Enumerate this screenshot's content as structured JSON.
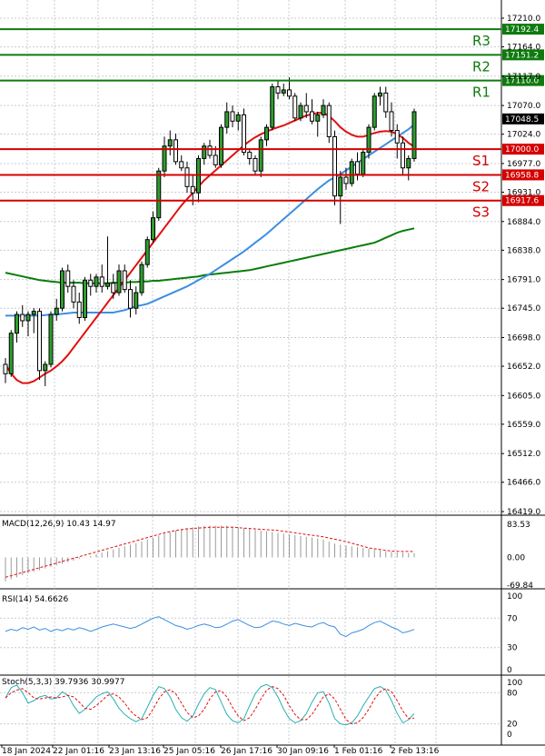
{
  "chart_data": {
    "type": "candlestick",
    "instrument_note": "US index CFD, H4 candles",
    "price_axis": {
      "min": 16419.0,
      "max": 17210.0,
      "ticks": [
        17210.0,
        17164.0,
        17117.0,
        17070.0,
        17024.0,
        16977.0,
        16931.0,
        16884.0,
        16838.0,
        16791.0,
        16745.0,
        16698.0,
        16652.0,
        16605.0,
        16559.0,
        16512.0,
        16466.0,
        16419.0
      ]
    },
    "levels": [
      {
        "name": "R3",
        "value": 17192.4,
        "label": "17192.4",
        "color": "#0f7a0f"
      },
      {
        "name": "R2",
        "value": 17151.2,
        "label": "17151.2",
        "color": "#0f7a0f"
      },
      {
        "name": "R1",
        "value": 17110.0,
        "label": "17110.0",
        "color": "#0f7a0f"
      },
      {
        "name": "S1",
        "value": 17000.0,
        "label": "17000.0",
        "color": "#d40000"
      },
      {
        "name": "S2",
        "value": 16958.8,
        "label": "16958.8",
        "color": "#d40000"
      },
      {
        "name": "S3",
        "value": 16917.6,
        "label": "16917.6",
        "color": "#d40000"
      }
    ],
    "current_price": {
      "value": 17048.5,
      "label": "17048.5"
    },
    "x_labels": [
      "18 Jan 2024",
      "22 Jan 01:16",
      "23 Jan 13:16",
      "25 Jan 05:16",
      "26 Jan 17:16",
      "30 Jan 09:16",
      "1 Feb 01:16",
      "2 Feb 13:16"
    ],
    "candles": [
      [
        16655,
        16665,
        16625,
        16640
      ],
      [
        16640,
        16710,
        16635,
        16705
      ],
      [
        16705,
        16740,
        16690,
        16735
      ],
      [
        16735,
        16750,
        16715,
        16725
      ],
      [
        16725,
        16740,
        16700,
        16735
      ],
      [
        16735,
        16745,
        16705,
        16740
      ],
      [
        16740,
        16745,
        16630,
        16645
      ],
      [
        16645,
        16660,
        16620,
        16655
      ],
      [
        16655,
        16740,
        16650,
        16735
      ],
      [
        16735,
        16760,
        16725,
        16745
      ],
      [
        16745,
        16810,
        16740,
        16805
      ],
      [
        16805,
        16815,
        16770,
        16780
      ],
      [
        16780,
        16790,
        16745,
        16755
      ],
      [
        16755,
        16770,
        16720,
        16730
      ],
      [
        16730,
        16795,
        16725,
        16790
      ],
      [
        16790,
        16800,
        16765,
        16780
      ],
      [
        16780,
        16800,
        16770,
        16795
      ],
      [
        16795,
        16815,
        16770,
        16780
      ],
      [
        16780,
        16860,
        16775,
        16785
      ],
      [
        16785,
        16800,
        16760,
        16770
      ],
      [
        16770,
        16815,
        16765,
        16805
      ],
      [
        16805,
        16815,
        16770,
        16775
      ],
      [
        16775,
        16790,
        16730,
        16745
      ],
      [
        16745,
        16780,
        16735,
        16770
      ],
      [
        16770,
        16820,
        16765,
        16815
      ],
      [
        16815,
        16860,
        16810,
        16855
      ],
      [
        16855,
        16900,
        16850,
        16890
      ],
      [
        16890,
        16970,
        16885,
        16965
      ],
      [
        16965,
        17020,
        16955,
        17005
      ],
      [
        17005,
        17030,
        16990,
        17015
      ],
      [
        17015,
        17025,
        16975,
        16980
      ],
      [
        16980,
        16990,
        16965,
        16970
      ],
      [
        16970,
        16980,
        16930,
        16940
      ],
      [
        16940,
        16960,
        16910,
        16930
      ],
      [
        16930,
        16990,
        16915,
        16985
      ],
      [
        16985,
        17010,
        16975,
        17005
      ],
      [
        17005,
        17015,
        16985,
        16990
      ],
      [
        16990,
        17005,
        16970,
        16975
      ],
      [
        16975,
        17040,
        16970,
        17035
      ],
      [
        17035,
        17075,
        17025,
        17060
      ],
      [
        17060,
        17070,
        17035,
        17045
      ],
      [
        17045,
        17060,
        17030,
        17055
      ],
      [
        17055,
        17065,
        16990,
        16995
      ],
      [
        16995,
        17000,
        16975,
        16985
      ],
      [
        16985,
        16990,
        16960,
        16965
      ],
      [
        16965,
        17020,
        16955,
        17015
      ],
      [
        17015,
        17040,
        17005,
        17035
      ],
      [
        17035,
        17105,
        17030,
        17100
      ],
      [
        17100,
        17110,
        17080,
        17090
      ],
      [
        17090,
        17105,
        17085,
        17095
      ],
      [
        17095,
        17115,
        17080,
        17085
      ],
      [
        17085,
        17090,
        17045,
        17050
      ],
      [
        17050,
        17075,
        17045,
        17070
      ],
      [
        17070,
        17090,
        17050,
        17060
      ],
      [
        17060,
        17080,
        17040,
        17045
      ],
      [
        17045,
        17060,
        17020,
        17055
      ],
      [
        17055,
        17080,
        17050,
        17070
      ],
      [
        17070,
        17075,
        17010,
        17020
      ],
      [
        17020,
        17030,
        16910,
        16925
      ],
      [
        16925,
        16965,
        16880,
        16955
      ],
      [
        16955,
        16970,
        16935,
        16945
      ],
      [
        16945,
        16985,
        16940,
        16980
      ],
      [
        16980,
        16995,
        16950,
        16960
      ],
      [
        16960,
        17000,
        16955,
        16995
      ],
      [
        16995,
        17040,
        16985,
        17035
      ],
      [
        17035,
        17090,
        17030,
        17085
      ],
      [
        17085,
        17100,
        17070,
        17090
      ],
      [
        17090,
        17100,
        17050,
        17060
      ],
      [
        17060,
        17075,
        17020,
        17030
      ],
      [
        17030,
        17040,
        16985,
        17010
      ],
      [
        17010,
        17020,
        16960,
        16970
      ],
      [
        16970,
        16990,
        16950,
        16985
      ],
      [
        16985,
        17065,
        16980,
        17060
      ]
    ],
    "ma_fast": [
      16655,
      16640,
      16630,
      16625,
      16625,
      16628,
      16634,
      16640,
      16645,
      16652,
      16660,
      16670,
      16682,
      16694,
      16706,
      16718,
      16730,
      16742,
      16754,
      16766,
      16778,
      16790,
      16802,
      16814,
      16826,
      16838,
      16850,
      16862,
      16874,
      16886,
      16898,
      16910,
      16920,
      16930,
      16940,
      16950,
      16958,
      16966,
      16974,
      16982,
      16990,
      16998,
      17006,
      17013,
      17019,
      17024,
      17028,
      17032,
      17035,
      17038,
      17042,
      17046,
      17050,
      17054,
      17056,
      17058,
      17058,
      17053,
      17045,
      17035,
      17028,
      17023,
      17020,
      17020,
      17023,
      17026,
      17028,
      17029,
      17028,
      17024,
      17018,
      17010,
      17004
    ],
    "ma_mid": [
      16733,
      16733,
      16733,
      16733,
      16733,
      16733,
      16733,
      16734,
      16735,
      16735,
      16736,
      16737,
      16738,
      16738,
      16738,
      16738,
      16738,
      16738,
      16738,
      16738,
      16740,
      16742,
      16745,
      16748,
      16750,
      16752,
      16756,
      16760,
      16764,
      16768,
      16772,
      16776,
      16780,
      16785,
      16790,
      16795,
      16800,
      16806,
      16812,
      16818,
      16824,
      16830,
      16836,
      16843,
      16850,
      16857,
      16864,
      16872,
      16880,
      16888,
      16896,
      16904,
      16912,
      16920,
      16928,
      16936,
      16943,
      16950,
      16955,
      16960,
      16966,
      16972,
      16978,
      16984,
      16990,
      16996,
      17002,
      17008,
      17014,
      17020,
      17026,
      17032,
      17040
    ],
    "ma_slow": [
      16802,
      16800,
      16798,
      16796,
      16794,
      16792,
      16790,
      16789,
      16788,
      16787,
      16786,
      16786,
      16786,
      16786,
      16785,
      16785,
      16785,
      16785,
      16785,
      16786,
      16786,
      16786,
      16787,
      16787,
      16788,
      16788,
      16789,
      16789,
      16790,
      16791,
      16792,
      16793,
      16794,
      16795,
      16796,
      16798,
      16799,
      16800,
      16801,
      16802,
      16803,
      16804,
      16805,
      16806,
      16808,
      16810,
      16812,
      16814,
      16816,
      16818,
      16820,
      16822,
      16824,
      16826,
      16828,
      16830,
      16832,
      16834,
      16836,
      16838,
      16840,
      16842,
      16844,
      16846,
      16848,
      16850,
      16854,
      16858,
      16862,
      16866,
      16869,
      16871,
      16873
    ],
    "macd": {
      "label": "MACD(12,26,9) 10.43 14.97",
      "axis_ticks": [
        "83.53",
        "0.00",
        "-69.84"
      ],
      "range": [
        -69.84,
        83.53
      ],
      "histogram": [
        -60,
        -55,
        -50,
        -45,
        -40,
        -36,
        -32,
        -28,
        -24,
        -20,
        -16,
        -12,
        -8,
        -4,
        0,
        4,
        8,
        12,
        16,
        20,
        24,
        28,
        32,
        36,
        40,
        45,
        50,
        55,
        60,
        64,
        68,
        72,
        74,
        76,
        78,
        80,
        80,
        80,
        80,
        80,
        78,
        76,
        74,
        72,
        70,
        68,
        66,
        64,
        62,
        60,
        58,
        56,
        54,
        52,
        50,
        48,
        45,
        40,
        35,
        32,
        30,
        28,
        26,
        24,
        22,
        20,
        18,
        16,
        14,
        13,
        12,
        11,
        10.43
      ],
      "signal": [
        -50,
        -46,
        -42,
        -38,
        -34,
        -30,
        -26,
        -22,
        -18,
        -14,
        -10,
        -6,
        -2,
        2,
        6,
        10,
        14,
        18,
        22,
        26,
        30,
        34,
        38,
        42,
        46,
        50,
        54,
        58,
        62,
        65,
        68,
        70,
        72,
        73,
        74,
        75,
        76,
        76,
        76,
        76,
        76,
        75,
        74,
        73,
        72,
        71,
        70,
        69,
        68,
        66,
        64,
        62,
        60,
        58,
        56,
        54,
        52,
        49,
        46,
        43,
        40,
        36,
        32,
        28,
        24,
        22,
        20,
        18,
        16,
        15.5,
        15.2,
        15,
        14.97
      ]
    },
    "rsi": {
      "label": "RSI(14) 54.6626",
      "axis_ticks": [
        "100",
        "70",
        "30",
        "0"
      ],
      "values": [
        52,
        55,
        53,
        57,
        55,
        58,
        54,
        56,
        52,
        55,
        53,
        56,
        54,
        57,
        55,
        52,
        55,
        58,
        60,
        62,
        60,
        58,
        56,
        58,
        62,
        66,
        70,
        72,
        68,
        64,
        60,
        58,
        55,
        57,
        60,
        62,
        60,
        57,
        58,
        62,
        66,
        68,
        64,
        60,
        57,
        58,
        62,
        66,
        65,
        62,
        60,
        63,
        61,
        59,
        58,
        62,
        64,
        60,
        58,
        48,
        45,
        50,
        52,
        55,
        60,
        64,
        66,
        62,
        58,
        55,
        50,
        52,
        54.66
      ]
    },
    "stoch": {
      "label": "Stoch(5,3,3) 39.7936 30.9977",
      "axis_ticks": [
        "100",
        "80",
        "20",
        "0"
      ],
      "k": [
        70,
        90,
        95,
        80,
        60,
        65,
        72,
        75,
        68,
        70,
        82,
        75,
        55,
        40,
        48,
        60,
        72,
        78,
        82,
        68,
        50,
        38,
        30,
        24,
        30,
        52,
        75,
        92,
        88,
        72,
        48,
        32,
        25,
        35,
        58,
        78,
        90,
        86,
        62,
        38,
        26,
        22,
        30,
        55,
        78,
        92,
        96,
        90,
        72,
        48,
        30,
        22,
        26,
        40,
        62,
        80,
        82,
        60,
        30,
        20,
        18,
        22,
        35,
        55,
        72,
        88,
        92,
        85,
        65,
        40,
        22,
        28,
        39.79
      ],
      "d": [
        70,
        80,
        85,
        88,
        80,
        70,
        68,
        70,
        72,
        70,
        72,
        75,
        72,
        62,
        50,
        48,
        55,
        65,
        75,
        78,
        72,
        60,
        45,
        35,
        28,
        32,
        48,
        68,
        82,
        86,
        78,
        60,
        42,
        32,
        35,
        48,
        68,
        82,
        84,
        72,
        52,
        35,
        26,
        32,
        48,
        68,
        85,
        92,
        88,
        75,
        55,
        38,
        28,
        28,
        38,
        55,
        72,
        78,
        68,
        48,
        28,
        20,
        22,
        32,
        48,
        68,
        82,
        88,
        82,
        65,
        45,
        30,
        31.0
      ]
    }
  }
}
